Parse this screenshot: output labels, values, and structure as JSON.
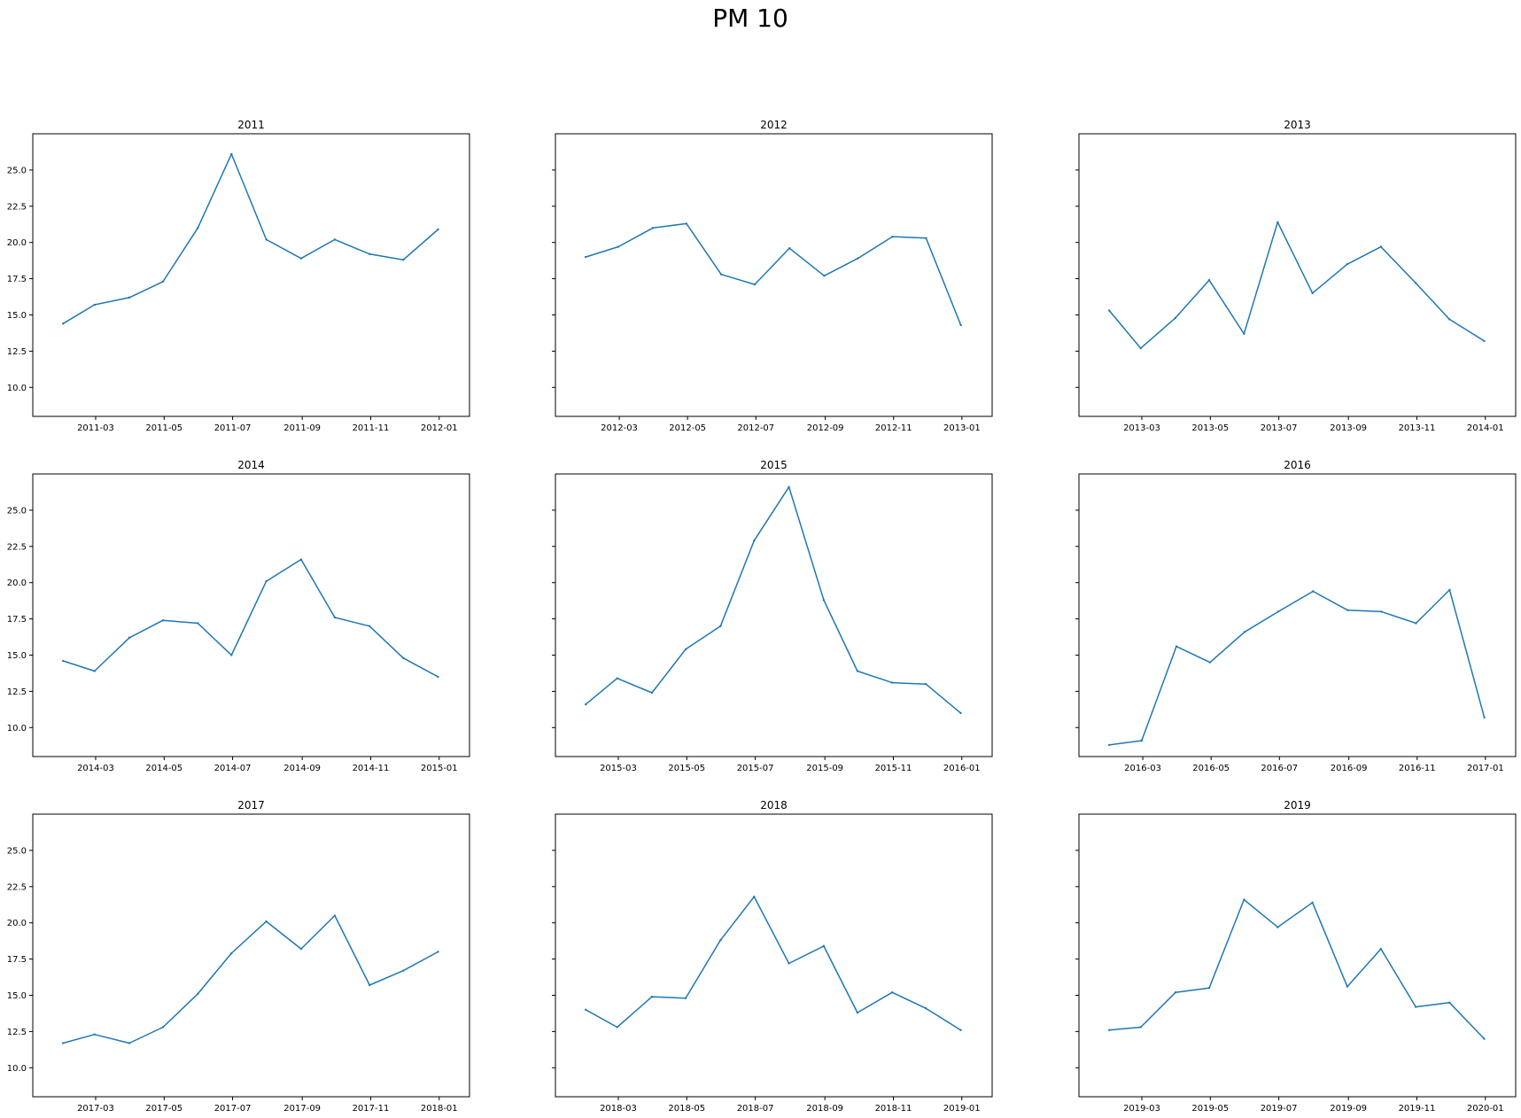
{
  "title": "PM 10",
  "colors": {
    "line": "#1f77b4",
    "axes": "#000000",
    "background": "#ffffff"
  },
  "chart_data": [
    {
      "type": "line",
      "title": "2011",
      "ylim": [
        8,
        27.5
      ],
      "yticks": [
        "10.0",
        "12.5",
        "15.0",
        "17.5",
        "20.0",
        "22.5",
        "25.0"
      ],
      "ytick_values": [
        10,
        12.5,
        15,
        17.5,
        20,
        22.5,
        25
      ],
      "show_ytick_labels": true,
      "xlim": [
        "2011-01-04",
        "2012-01-28"
      ],
      "xticks": [
        "2011-03",
        "2011-05",
        "2011-07",
        "2011-09",
        "2011-11",
        "2012-01"
      ],
      "x": [
        "2011-01-31",
        "2011-02-28",
        "2011-03-31",
        "2011-04-30",
        "2011-05-31",
        "2011-06-30",
        "2011-07-31",
        "2011-08-31",
        "2011-09-30",
        "2011-10-31",
        "2011-11-30",
        "2011-12-31"
      ],
      "values": [
        14.4,
        15.7,
        16.2,
        17.3,
        21.0,
        26.1,
        20.2,
        18.9,
        20.2,
        19.2,
        18.8,
        20.9
      ]
    },
    {
      "type": "line",
      "title": "2012",
      "ylim": [
        8,
        27.5
      ],
      "yticks": [
        "10.0",
        "12.5",
        "15.0",
        "17.5",
        "20.0",
        "22.5",
        "25.0"
      ],
      "ytick_values": [
        10,
        12.5,
        15,
        17.5,
        20,
        22.5,
        25
      ],
      "show_ytick_labels": false,
      "xlim": [
        "2012-01-04",
        "2013-01-28"
      ],
      "xticks": [
        "2012-03",
        "2012-05",
        "2012-07",
        "2012-09",
        "2012-11",
        "2013-01"
      ],
      "x": [
        "2012-01-31",
        "2012-02-29",
        "2012-03-31",
        "2012-04-30",
        "2012-05-31",
        "2012-06-30",
        "2012-07-31",
        "2012-08-31",
        "2012-09-30",
        "2012-10-31",
        "2012-11-30",
        "2012-12-31"
      ],
      "values": [
        19.0,
        19.7,
        21.0,
        21.3,
        17.8,
        17.1,
        19.6,
        17.7,
        18.9,
        20.4,
        20.3,
        14.3
      ]
    },
    {
      "type": "line",
      "title": "2013",
      "ylim": [
        8,
        27.5
      ],
      "yticks": [
        "10.0",
        "12.5",
        "15.0",
        "17.5",
        "20.0",
        "22.5",
        "25.0"
      ],
      "ytick_values": [
        10,
        12.5,
        15,
        17.5,
        20,
        22.5,
        25
      ],
      "show_ytick_labels": false,
      "xlim": [
        "2013-01-04",
        "2014-01-28"
      ],
      "xticks": [
        "2013-03",
        "2013-05",
        "2013-07",
        "2013-09",
        "2013-11",
        "2014-01"
      ],
      "x": [
        "2013-01-31",
        "2013-02-28",
        "2013-03-31",
        "2013-04-30",
        "2013-05-31",
        "2013-06-30",
        "2013-07-31",
        "2013-08-31",
        "2013-09-30",
        "2013-10-31",
        "2013-11-30",
        "2013-12-31"
      ],
      "values": [
        15.3,
        12.7,
        14.8,
        17.4,
        13.7,
        21.4,
        16.5,
        18.5,
        19.7,
        17.2,
        14.7,
        13.2
      ]
    },
    {
      "type": "line",
      "title": "2014",
      "ylim": [
        8,
        27.5
      ],
      "yticks": [
        "10.0",
        "12.5",
        "15.0",
        "17.5",
        "20.0",
        "22.5",
        "25.0"
      ],
      "ytick_values": [
        10,
        12.5,
        15,
        17.5,
        20,
        22.5,
        25
      ],
      "show_ytick_labels": true,
      "xlim": [
        "2014-01-04",
        "2015-01-28"
      ],
      "xticks": [
        "2014-03",
        "2014-05",
        "2014-07",
        "2014-09",
        "2014-11",
        "2015-01"
      ],
      "x": [
        "2014-01-31",
        "2014-02-28",
        "2014-03-31",
        "2014-04-30",
        "2014-05-31",
        "2014-06-30",
        "2014-07-31",
        "2014-08-31",
        "2014-09-30",
        "2014-10-31",
        "2014-11-30",
        "2014-12-31"
      ],
      "values": [
        14.6,
        13.9,
        16.2,
        17.4,
        17.2,
        15.0,
        20.1,
        21.6,
        17.6,
        17.0,
        14.8,
        13.5
      ]
    },
    {
      "type": "line",
      "title": "2015",
      "ylim": [
        8,
        27.5
      ],
      "yticks": [
        "10.0",
        "12.5",
        "15.0",
        "17.5",
        "20.0",
        "22.5",
        "25.0"
      ],
      "ytick_values": [
        10,
        12.5,
        15,
        17.5,
        20,
        22.5,
        25
      ],
      "show_ytick_labels": false,
      "xlim": [
        "2015-01-04",
        "2016-01-28"
      ],
      "xticks": [
        "2015-03",
        "2015-05",
        "2015-07",
        "2015-09",
        "2015-11",
        "2016-01"
      ],
      "x": [
        "2015-01-31",
        "2015-02-28",
        "2015-03-31",
        "2015-04-30",
        "2015-05-31",
        "2015-06-30",
        "2015-07-31",
        "2015-08-31",
        "2015-09-30",
        "2015-10-31",
        "2015-11-30",
        "2015-12-31"
      ],
      "values": [
        11.6,
        13.4,
        12.4,
        15.4,
        17.0,
        22.9,
        26.6,
        18.8,
        13.9,
        13.1,
        13.0,
        11.0
      ]
    },
    {
      "type": "line",
      "title": "2016",
      "ylim": [
        8,
        27.5
      ],
      "yticks": [
        "10.0",
        "12.5",
        "15.0",
        "17.5",
        "20.0",
        "22.5",
        "25.0"
      ],
      "ytick_values": [
        10,
        12.5,
        15,
        17.5,
        20,
        22.5,
        25
      ],
      "show_ytick_labels": false,
      "xlim": [
        "2016-01-04",
        "2017-01-28"
      ],
      "xticks": [
        "2016-03",
        "2016-05",
        "2016-07",
        "2016-09",
        "2016-11",
        "2017-01"
      ],
      "x": [
        "2016-01-31",
        "2016-02-29",
        "2016-03-31",
        "2016-04-30",
        "2016-05-31",
        "2016-06-30",
        "2016-07-31",
        "2016-08-31",
        "2016-09-30",
        "2016-10-31",
        "2016-11-30",
        "2016-12-31"
      ],
      "values": [
        8.8,
        9.1,
        15.6,
        14.5,
        16.6,
        18.0,
        19.4,
        18.1,
        18.0,
        17.2,
        19.5,
        10.7
      ]
    },
    {
      "type": "line",
      "title": "2017",
      "ylim": [
        8,
        27.5
      ],
      "yticks": [
        "10.0",
        "12.5",
        "15.0",
        "17.5",
        "20.0",
        "22.5",
        "25.0"
      ],
      "ytick_values": [
        10,
        12.5,
        15,
        17.5,
        20,
        22.5,
        25
      ],
      "show_ytick_labels": true,
      "xlim": [
        "2017-01-04",
        "2018-01-28"
      ],
      "xticks": [
        "2017-03",
        "2017-05",
        "2017-07",
        "2017-09",
        "2017-11",
        "2018-01"
      ],
      "x": [
        "2017-01-31",
        "2017-02-28",
        "2017-03-31",
        "2017-04-30",
        "2017-05-31",
        "2017-06-30",
        "2017-07-31",
        "2017-08-31",
        "2017-09-30",
        "2017-10-31",
        "2017-11-30",
        "2017-12-31"
      ],
      "values": [
        11.7,
        12.3,
        11.7,
        12.8,
        15.1,
        17.9,
        20.1,
        18.2,
        20.5,
        15.7,
        16.7,
        18.0
      ]
    },
    {
      "type": "line",
      "title": "2018",
      "ylim": [
        8,
        27.5
      ],
      "yticks": [
        "10.0",
        "12.5",
        "15.0",
        "17.5",
        "20.0",
        "22.5",
        "25.0"
      ],
      "ytick_values": [
        10,
        12.5,
        15,
        17.5,
        20,
        22.5,
        25
      ],
      "show_ytick_labels": false,
      "xlim": [
        "2018-01-04",
        "2019-01-28"
      ],
      "xticks": [
        "2018-03",
        "2018-05",
        "2018-07",
        "2018-09",
        "2018-11",
        "2019-01"
      ],
      "x": [
        "2018-01-31",
        "2018-02-28",
        "2018-03-31",
        "2018-04-30",
        "2018-05-31",
        "2018-06-30",
        "2018-07-31",
        "2018-08-31",
        "2018-09-30",
        "2018-10-31",
        "2018-11-30",
        "2018-12-31"
      ],
      "values": [
        14.0,
        12.8,
        14.9,
        14.8,
        18.8,
        21.8,
        17.2,
        18.4,
        13.8,
        15.2,
        14.1,
        12.6
      ]
    },
    {
      "type": "line",
      "title": "2019",
      "ylim": [
        8,
        27.5
      ],
      "yticks": [
        "10.0",
        "12.5",
        "15.0",
        "17.5",
        "20.0",
        "22.5",
        "25.0"
      ],
      "ytick_values": [
        10,
        12.5,
        15,
        17.5,
        20,
        22.5,
        25
      ],
      "show_ytick_labels": false,
      "xlim": [
        "2019-01-04",
        "2020-01-28"
      ],
      "xticks": [
        "2019-03",
        "2019-05",
        "2019-07",
        "2019-09",
        "2019-11",
        "2020-01"
      ],
      "x": [
        "2019-01-31",
        "2019-02-28",
        "2019-03-31",
        "2019-04-30",
        "2019-05-31",
        "2019-06-30",
        "2019-07-31",
        "2019-08-31",
        "2019-09-30",
        "2019-10-31",
        "2019-11-30",
        "2019-12-31"
      ],
      "values": [
        12.6,
        12.8,
        15.2,
        15.5,
        21.6,
        19.7,
        21.4,
        15.6,
        18.2,
        14.2,
        14.5,
        12.0
      ]
    }
  ]
}
